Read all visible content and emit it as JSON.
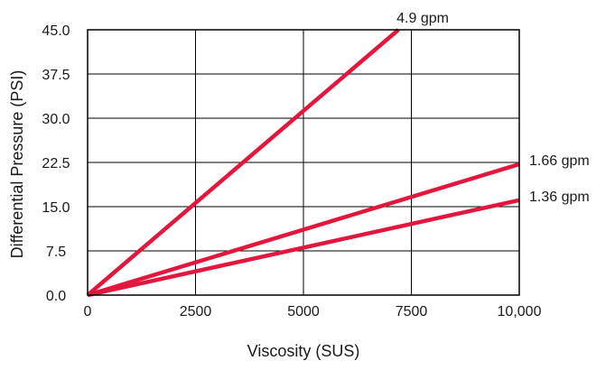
{
  "chart_data": {
    "type": "line",
    "title": "",
    "xlabel": "Viscosity (SUS)",
    "ylabel": "Differential Pressure (PSI)",
    "xlim": [
      0,
      10000
    ],
    "ylim": [
      0,
      45
    ],
    "x_ticks": [
      0,
      2500,
      5000,
      7500,
      10000
    ],
    "x_tick_labels": [
      "0",
      "2500",
      "5000",
      "7500",
      "10,000"
    ],
    "y_ticks": [
      0,
      7.5,
      15,
      22.5,
      30,
      37.5,
      45
    ],
    "y_tick_labels": [
      "0.0",
      "7.5",
      "15.0",
      "22.5",
      "30.0",
      "37.5",
      "45.0"
    ],
    "grid": true,
    "line_color": "#e3173e",
    "series": [
      {
        "name": "4.9 gpm",
        "x": [
          0,
          7200
        ],
        "y": [
          0,
          45
        ]
      },
      {
        "name": "1.66 gpm",
        "x": [
          0,
          10000
        ],
        "y": [
          0,
          22.2
        ]
      },
      {
        "name": "1.36 gpm",
        "x": [
          0,
          10000
        ],
        "y": [
          0,
          16.1
        ]
      }
    ]
  }
}
